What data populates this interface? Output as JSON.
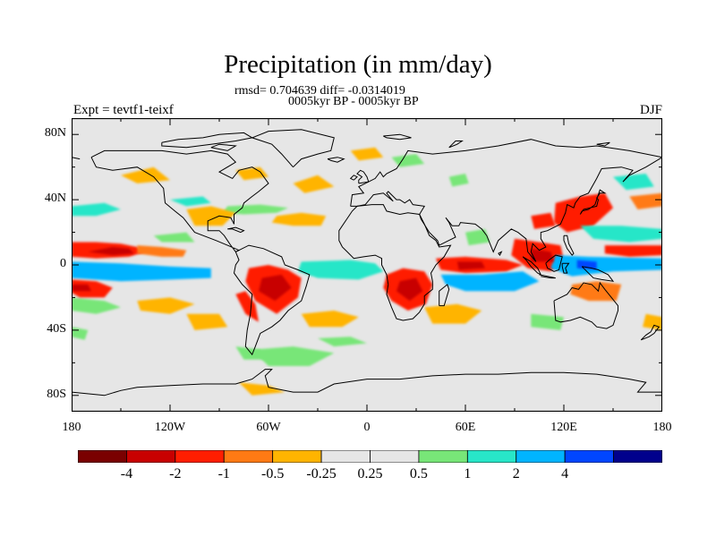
{
  "map": {
    "title": "Precipitation (in mm/day)",
    "stats_line": "rmsd= 0.704639 diff= -0.0314019",
    "period_line": "0005kyr BP - 0005kyr BP",
    "experiment_label": "Expt = tevtf1-teixf",
    "season_label": "DJF",
    "projection": "cylindrical equidistant",
    "lon_range": [
      -180,
      180
    ],
    "lat_range": [
      -90,
      90
    ],
    "lat_ticks": [
      {
        "value": 80,
        "label": "80N"
      },
      {
        "value": 40,
        "label": "40N"
      },
      {
        "value": 0,
        "label": "0"
      },
      {
        "value": -40,
        "label": "40S"
      },
      {
        "value": -80,
        "label": "80S"
      }
    ],
    "lon_ticks": [
      {
        "value": -180,
        "label": "180"
      },
      {
        "value": -120,
        "label": "120W"
      },
      {
        "value": -60,
        "label": "60W"
      },
      {
        "value": 0,
        "label": "0"
      },
      {
        "value": 60,
        "label": "60E"
      },
      {
        "value": 120,
        "label": "120E"
      },
      {
        "value": 180,
        "label": "180"
      }
    ],
    "background_color": "#e6e6e6",
    "coastline_color": "#000000"
  },
  "colorbar": {
    "colors": [
      "#7a0000",
      "#c80000",
      "#ff1e00",
      "#ff7a14",
      "#ffb400",
      "#e6e6e6",
      "#e6e6e6",
      "#78e678",
      "#28e6c8",
      "#00b4ff",
      "#0046ff",
      "#00008c"
    ],
    "labels": [
      "-4",
      "-2",
      "-1",
      "-0.5",
      "-0.25",
      "0.25",
      "0.5",
      "1",
      "2",
      "4"
    ]
  },
  "chart_data": {
    "type": "heatmap",
    "variable": "precipitation difference",
    "units": "mm/day",
    "levels": [
      -4,
      -2,
      -1,
      -0.5,
      -0.25,
      0.25,
      0.5,
      1,
      2,
      4
    ],
    "features": [
      {
        "name": "eastern-pacific-north-itcz-drying",
        "lon": -155,
        "lat": 9,
        "value": -3
      },
      {
        "name": "pacific-itcz-drying-2",
        "lon": -130,
        "lat": 6,
        "value": -1
      },
      {
        "name": "south-pacific-convergence-moistening",
        "lon": -150,
        "lat": -6,
        "value": 1.5
      },
      {
        "name": "southeast-pacific-drying",
        "lon": -170,
        "lat": -14,
        "value": -2
      },
      {
        "name": "south-america-drying",
        "lon": -52,
        "lat": -12,
        "value": -3
      },
      {
        "name": "south-america-drying-2",
        "lon": -40,
        "lat": -8,
        "value": -2
      },
      {
        "name": "atlantic-itcz-moistening",
        "lon": -25,
        "lat": -5,
        "value": 1
      },
      {
        "name": "north-atlantic-drying",
        "lon": -40,
        "lat": 27,
        "value": -0.5
      },
      {
        "name": "north-atlantic-moistening",
        "lon": -60,
        "lat": 32,
        "value": 0.5
      },
      {
        "name": "southern-africa-drying",
        "lon": 27,
        "lat": -14,
        "value": -3
      },
      {
        "name": "indian-ocean-drying",
        "lon": 60,
        "lat": -2,
        "value": -3
      },
      {
        "name": "indian-ocean-moistening",
        "lon": 70,
        "lat": -12,
        "value": 1.5
      },
      {
        "name": "maritime-continent-drying",
        "lon": 105,
        "lat": 6,
        "value": -3
      },
      {
        "name": "western-pacific-moistening",
        "lon": 125,
        "lat": 0,
        "value": 2
      },
      {
        "name": "northwest-pacific-drying",
        "lon": 130,
        "lat": 25,
        "value": -2
      },
      {
        "name": "north-pacific-moistening",
        "lon": 145,
        "lat": 20,
        "value": 1
      },
      {
        "name": "central-pacific-drying",
        "lon": 165,
        "lat": 6,
        "value": -2
      },
      {
        "name": "south-atlantic-drying",
        "lon": -20,
        "lat": -32,
        "value": -0.5
      },
      {
        "name": "southern-indian-drying",
        "lon": 55,
        "lat": -30,
        "value": -0.5
      },
      {
        "name": "australia-drying",
        "lon": 142,
        "lat": -16,
        "value": -1
      },
      {
        "name": "southern-ocean-moistening",
        "lon": -45,
        "lat": -58,
        "value": 0.5
      },
      {
        "name": "north-america-drying",
        "lon": -95,
        "lat": 28,
        "value": -0.5
      }
    ]
  }
}
